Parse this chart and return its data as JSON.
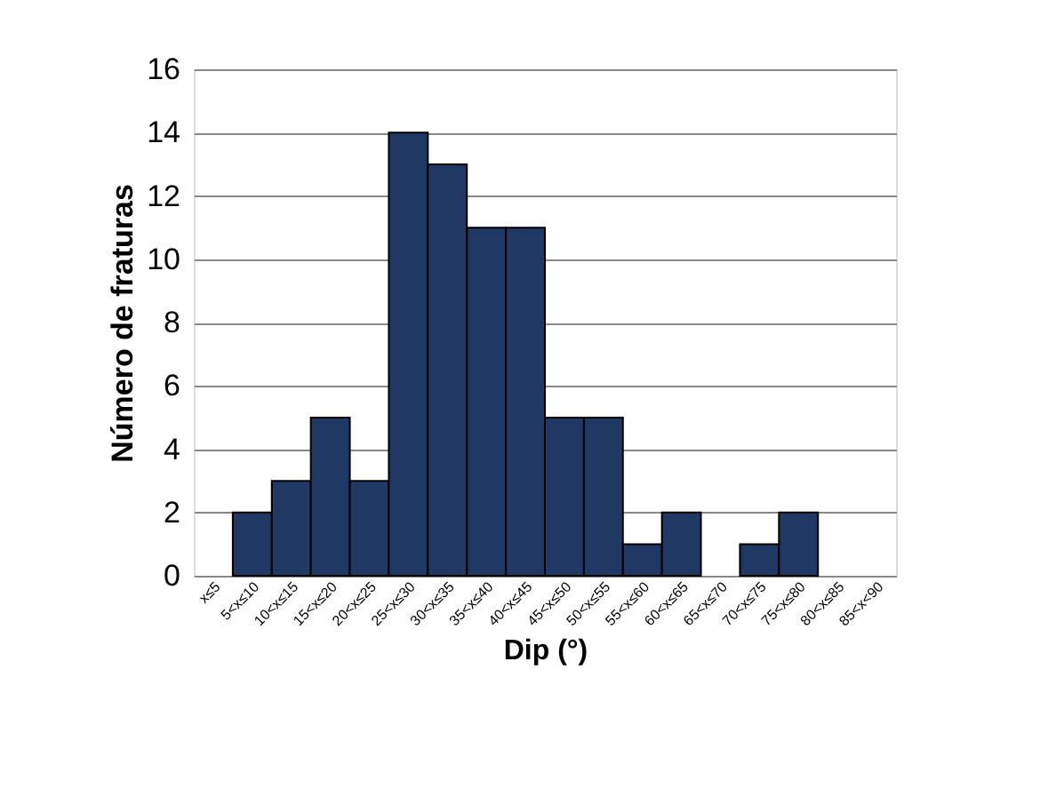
{
  "chart_data": {
    "type": "bar",
    "xlabel": "Dip (°)",
    "ylabel": "Número de fraturas",
    "categories": [
      "x≤5",
      "5<x≤10",
      "10<x≤15",
      "15<x≤20",
      "20<x≤25",
      "25<x≤30",
      "30<x≤35",
      "35<x≤40",
      "40<x≤45",
      "45<x≤50",
      "50<x≤55",
      "55<x≤60",
      "60<x≤65",
      "65<x≤70",
      "70<x≤75",
      "75<x≤80",
      "80<x≤85",
      "85<x<90"
    ],
    "values": [
      0,
      2,
      3,
      5,
      3,
      14,
      13,
      11,
      11,
      5,
      5,
      1,
      2,
      0,
      1,
      2,
      0,
      0
    ],
    "color": "#1f3864",
    "ylim": [
      0,
      16
    ],
    "yticks": [
      0,
      2,
      4,
      6,
      8,
      10,
      12,
      14,
      16
    ],
    "grid": "y"
  }
}
